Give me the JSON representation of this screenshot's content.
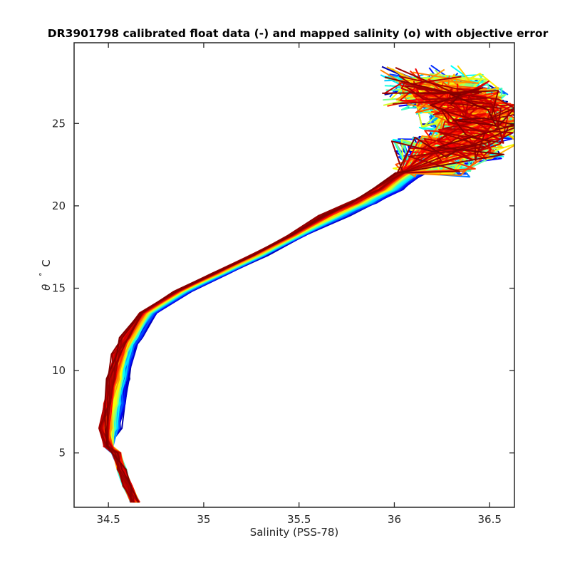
{
  "chart_data": {
    "type": "line",
    "title": "DR3901798 calibrated float data (-) and mapped salinity (o) with objective error",
    "xlabel": "Salinity (PSS-78)",
    "ylabel_symbol": "θ",
    "ylabel_unit": "°C",
    "xlim": [
      34.32,
      36.63
    ],
    "ylim": [
      1.7,
      29.9
    ],
    "x_ticks": [
      34.5,
      35,
      35.5,
      36,
      36.5
    ],
    "y_ticks": [
      5,
      10,
      15,
      20,
      25
    ],
    "x_tick_labels": [
      "34.5",
      "35",
      "35.5",
      "36",
      "36.5"
    ],
    "y_tick_labels": [
      "5",
      "10",
      "15",
      "20",
      "25"
    ],
    "grid": false,
    "colormap": "jet",
    "colormap_stops": [
      "#00008f",
      "#0000ff",
      "#00ffff",
      "#ffff00",
      "#ff0000",
      "#800000"
    ],
    "profile_count": 120,
    "representative_profile": {
      "salinity": [
        34.64,
        34.6,
        34.57,
        34.54,
        34.5,
        34.51,
        34.53,
        34.55,
        34.58,
        34.62,
        34.72,
        34.9,
        35.1,
        35.3,
        35.5,
        35.7,
        35.85,
        35.98,
        36.1,
        36.25,
        36.4,
        36.47,
        36.4,
        36.3,
        36.2
      ],
      "theta": [
        2.0,
        3.0,
        4.0,
        5.0,
        5.4,
        6.5,
        8.0,
        9.5,
        11.0,
        12.0,
        13.5,
        14.8,
        15.9,
        17.0,
        18.2,
        19.4,
        20.2,
        21.0,
        22.0,
        23.0,
        24.0,
        25.0,
        26.0,
        26.8,
        27.3
      ]
    },
    "legend": "none"
  }
}
